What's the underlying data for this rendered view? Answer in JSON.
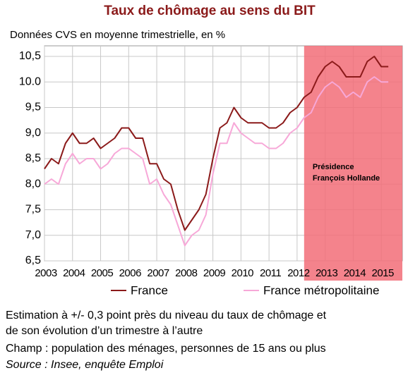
{
  "chart_data": {
    "type": "line",
    "title": "Taux de chômage au sens du BIT",
    "subtitle": "Données CVS en moyenne trimestrielle, en %",
    "x": [
      2003,
      2003.25,
      2003.5,
      2003.75,
      2004,
      2004.25,
      2004.5,
      2004.75,
      2005,
      2005.25,
      2005.5,
      2005.75,
      2006,
      2006.25,
      2006.5,
      2006.75,
      2007,
      2007.25,
      2007.5,
      2007.75,
      2008,
      2008.25,
      2008.5,
      2008.75,
      2009,
      2009.25,
      2009.5,
      2009.75,
      2010,
      2010.25,
      2010.5,
      2010.75,
      2011,
      2011.25,
      2011.5,
      2011.75,
      2012,
      2012.25,
      2012.5,
      2012.75,
      2013,
      2013.25,
      2013.5,
      2013.75,
      2014,
      2014.25,
      2014.5,
      2014.75,
      2015,
      2015.25
    ],
    "series": [
      {
        "name": "France",
        "color": "#8b1a1a",
        "values": [
          8.3,
          8.5,
          8.4,
          8.8,
          9.0,
          8.8,
          8.8,
          8.9,
          8.7,
          8.8,
          8.9,
          9.1,
          9.1,
          8.9,
          8.9,
          8.4,
          8.4,
          8.1,
          8.0,
          7.5,
          7.1,
          7.3,
          7.5,
          7.8,
          8.5,
          9.1,
          9.2,
          9.5,
          9.3,
          9.2,
          9.2,
          9.2,
          9.1,
          9.1,
          9.2,
          9.4,
          9.5,
          9.7,
          9.8,
          10.1,
          10.3,
          10.4,
          10.3,
          10.1,
          10.1,
          10.1,
          10.4,
          10.5,
          10.3,
          10.3
        ]
      },
      {
        "name": "France métropolitaine",
        "color": "#f7a8d8",
        "values": [
          8.0,
          8.1,
          8.0,
          8.4,
          8.6,
          8.4,
          8.5,
          8.5,
          8.3,
          8.4,
          8.6,
          8.7,
          8.7,
          8.6,
          8.5,
          8.0,
          8.1,
          7.8,
          7.6,
          7.2,
          6.8,
          7.0,
          7.1,
          7.4,
          8.2,
          8.8,
          8.8,
          9.2,
          9.0,
          8.9,
          8.8,
          8.8,
          8.7,
          8.7,
          8.8,
          9.0,
          9.1,
          9.3,
          9.4,
          9.7,
          9.9,
          10.0,
          9.9,
          9.7,
          9.8,
          9.7,
          10.0,
          10.1,
          10.0,
          10.0
        ]
      }
    ],
    "xlim": [
      2003,
      2015.75
    ],
    "xticks": [
      2003,
      2004,
      2005,
      2006,
      2007,
      2008,
      2009,
      2010,
      2011,
      2012,
      2013,
      2014,
      2015
    ],
    "ylim": [
      6.5,
      10.5
    ],
    "yticks": [
      {
        "value": 6.5,
        "label": "6,5"
      },
      {
        "value": 7,
        "label": "7,0"
      },
      {
        "value": 7.5,
        "label": "7,5"
      },
      {
        "value": 8,
        "label": "8,0"
      },
      {
        "value": 8.5,
        "label": "8,5"
      },
      {
        "value": 9,
        "label": "9,0"
      },
      {
        "value": 9.5,
        "label": "9,5"
      },
      {
        "value": 10,
        "label": "10.0"
      },
      {
        "value": 10.5,
        "label": "10,5"
      }
    ],
    "grid": true,
    "shaded_region": {
      "from": 2012.25,
      "to": 2015.75,
      "color": "#f26d78",
      "label": [
        "Présidence",
        "François Hollande"
      ]
    },
    "notes": [
      "Estimation à +/- 0,3 point près du niveau du taux de chômage et",
      "de son évolution d’un trimestre à l’autre",
      "Champ : population des ménages, personnes de 15 ans ou plus",
      "Source : Insee, enquête Emploi"
    ]
  }
}
